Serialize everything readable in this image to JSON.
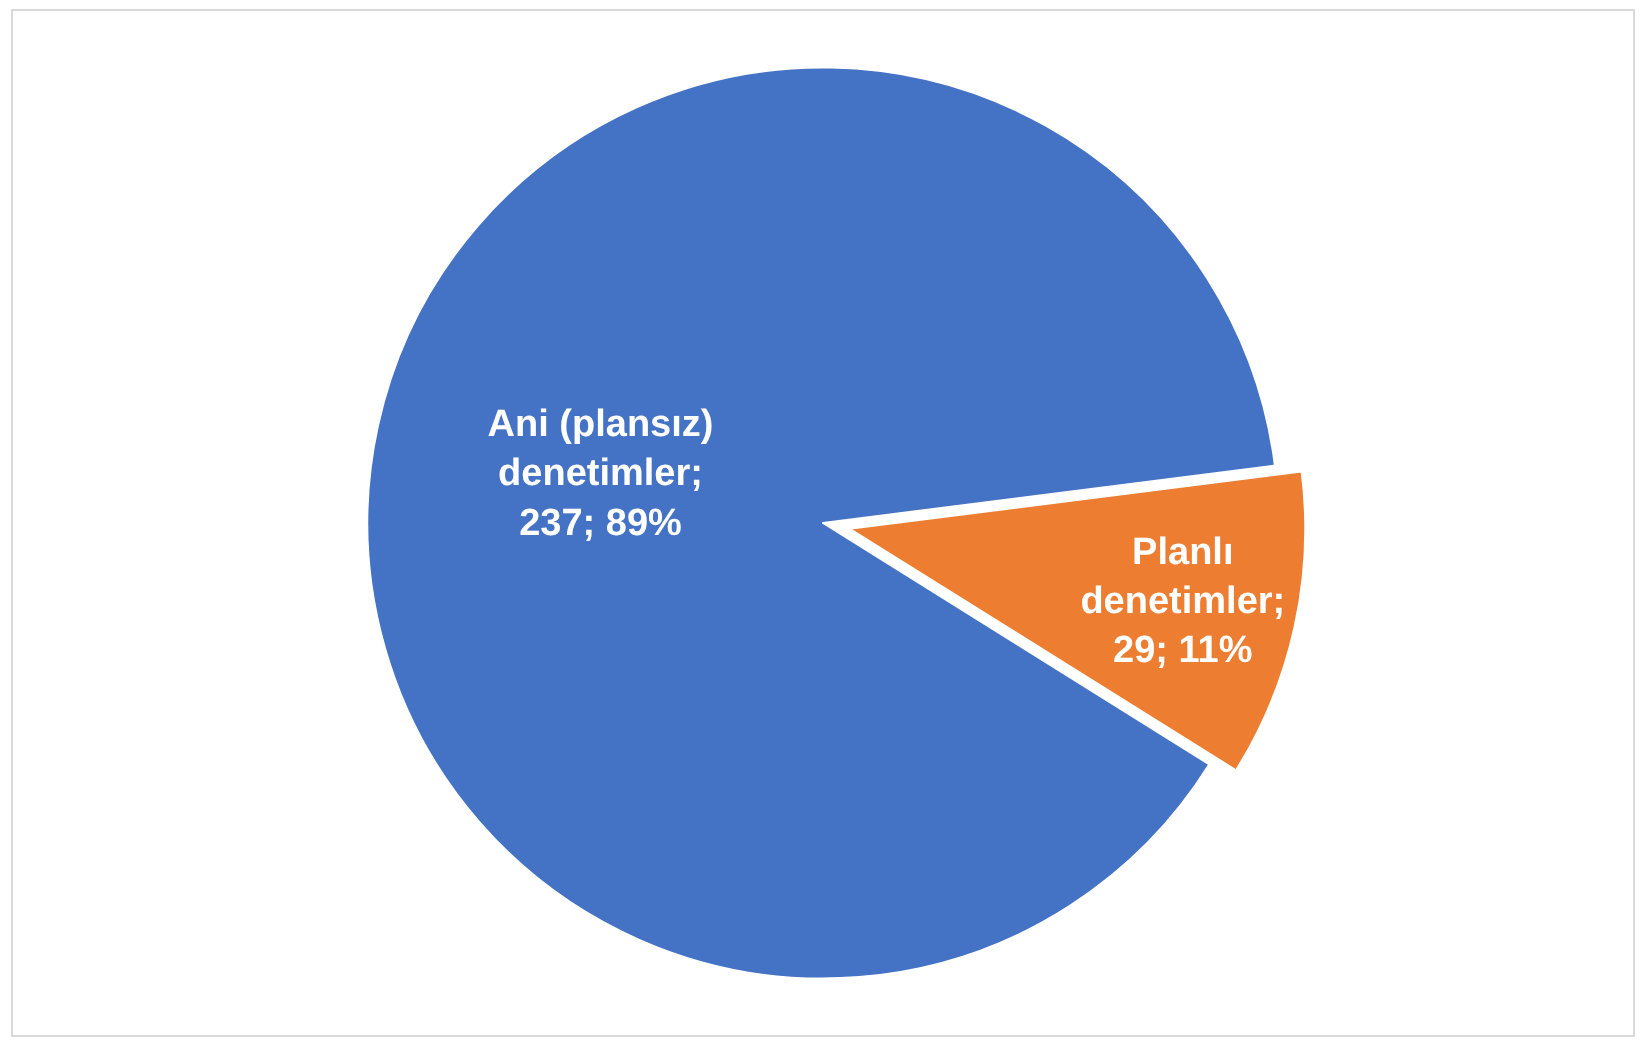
{
  "chart_data": {
    "type": "pie",
    "categories": [
      "Ani (plansız) denetimler",
      "Planlı denetimler"
    ],
    "values": [
      237,
      29
    ],
    "colors": [
      "#4472c4",
      "#ed7d31"
    ],
    "value_labels": [
      "; 237; 89%",
      "; 29; 11%"
    ],
    "legend": false
  }
}
